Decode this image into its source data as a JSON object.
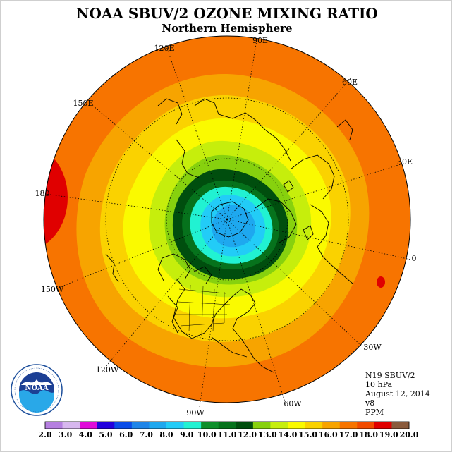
{
  "title": "NOAA SBUV/2 OZONE MIXING RATIO",
  "subtitle": "Northern Hemisphere",
  "longitude_labels": {
    "lon_90e": "90E",
    "lon_60e": "60E",
    "lon_30e": "30E",
    "lon_0": "0",
    "lon_30w": "30W",
    "lon_60w": "60W",
    "lon_90w": "90W",
    "lon_120w": "120W",
    "lon_150w": "150W",
    "lon_180": "180",
    "lon_150e": "150E",
    "lon_120e": "120E"
  },
  "info": {
    "instrument": "N19 SBUV/2",
    "level": "10 hPa",
    "date": "August 12, 2014",
    "version": "v8",
    "units": "PPM"
  },
  "logo": {
    "text": "NOAA",
    "ring_text": "NATIONAL OCEANIC AND ATMOSPHERIC ADMINISTRATION · U.S. DEPARTMENT OF COMMERCE"
  },
  "colorbar": {
    "labels": [
      "2.0",
      "3.0",
      "4.0",
      "5.0",
      "6.0",
      "7.0",
      "8.0",
      "9.0",
      "10.0",
      "11.0",
      "12.0",
      "13.0",
      "14.0",
      "15.0",
      "16.0",
      "17.0",
      "18.0",
      "19.0",
      "20.0"
    ],
    "colors": [
      "#b57fe0",
      "#d7b7ee",
      "#e10ad9",
      "#2200dd",
      "#0a4ce8",
      "#1f85e8",
      "#1ea8ef",
      "#22ccf7",
      "#21f2d2",
      "#0f8f2c",
      "#06721c",
      "#004e0e",
      "#87d10e",
      "#c6ee0c",
      "#fafa00",
      "#fad200",
      "#f7a400",
      "#f77400",
      "#f24b00",
      "#e00000",
      "#8a5a3c"
    ]
  },
  "map": {
    "field_colors_outer_to_inner": [
      "#f77400",
      "#f7a400",
      "#fad200",
      "#fafa00",
      "#c6ee0c",
      "#87d10e",
      "#004e0e",
      "#06721c",
      "#21f2d2",
      "#22ccf7",
      "#1ea8ef"
    ],
    "max_area_color": "#e00000"
  }
}
